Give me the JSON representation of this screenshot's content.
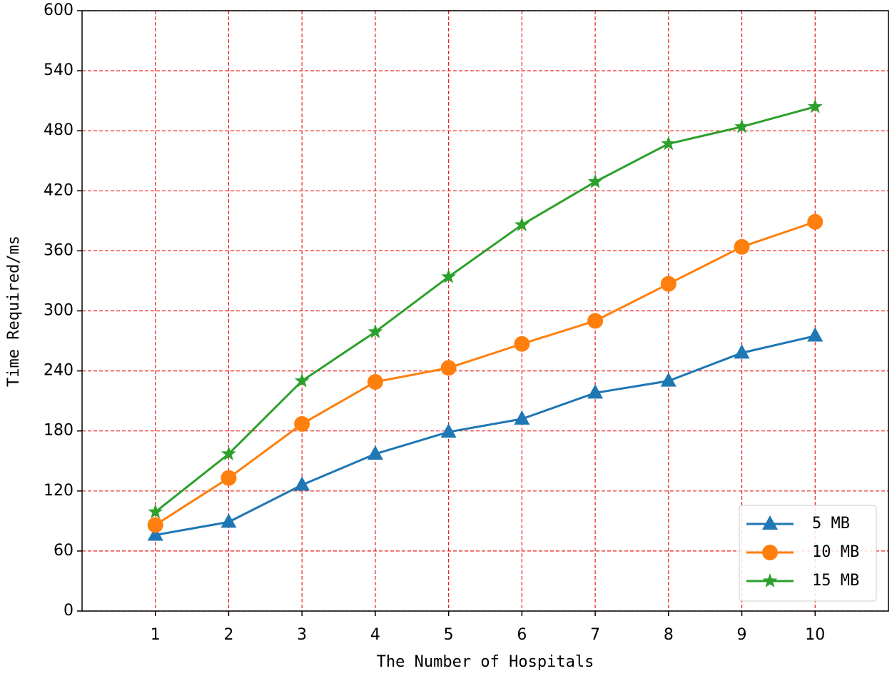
{
  "chart_data": {
    "type": "line",
    "xlabel": "The Number of Hospitals",
    "ylabel": "Time Required/ms",
    "x": [
      1,
      2,
      3,
      4,
      5,
      6,
      7,
      8,
      9,
      10
    ],
    "series": [
      {
        "name": "5 MB",
        "color": "#1f77b4",
        "marker": "triangle",
        "values": [
          76,
          89,
          126,
          157,
          179,
          192,
          218,
          230,
          258,
          275
        ]
      },
      {
        "name": "10 MB",
        "color": "#ff7f0e",
        "marker": "circle",
        "values": [
          86,
          133,
          187,
          229,
          243,
          267,
          290,
          327,
          364,
          389
        ]
      },
      {
        "name": "15 MB",
        "color": "#2ca02c",
        "marker": "star",
        "values": [
          99,
          157,
          230,
          279,
          334,
          386,
          429,
          467,
          484,
          504
        ]
      }
    ],
    "xlim": [
      0,
      11
    ],
    "xticks": [
      1,
      2,
      3,
      4,
      5,
      6,
      7,
      8,
      9,
      10
    ],
    "ylim": [
      0,
      600
    ],
    "yticks": [
      0,
      60,
      120,
      180,
      240,
      300,
      360,
      420,
      480,
      540,
      600
    ],
    "grid": true,
    "grid_color": "#e8191a",
    "legend": "lower right"
  }
}
